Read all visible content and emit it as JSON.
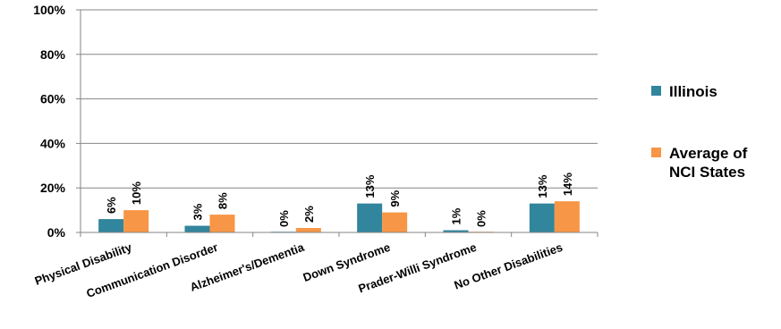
{
  "chart_data": {
    "type": "bar",
    "categories": [
      "Physical Disability",
      "Communication Disorder",
      "Alzheimer's/Dementia",
      "Down Syndrome",
      "Prader-Willi Syndrome",
      "No Other Disabilities"
    ],
    "series": [
      {
        "name": "Illinois",
        "color": "#31859C",
        "values": [
          6,
          3,
          0,
          13,
          1,
          13
        ],
        "labels": [
          "6%",
          "3%",
          "0%",
          "13%",
          "1%",
          "13%"
        ]
      },
      {
        "name": "Average of NCI States",
        "legend_lines": [
          "Average of",
          "NCI States"
        ],
        "color": "#F79646",
        "values": [
          10,
          8,
          2,
          9,
          0,
          14
        ],
        "labels": [
          "10%",
          "8%",
          "2%",
          "9%",
          "0%",
          "14%"
        ]
      }
    ],
    "ylim": [
      0,
      100
    ],
    "yticks": [
      "0%",
      "20%",
      "40%",
      "60%",
      "80%",
      "100%"
    ],
    "grid": true,
    "legend_position": "right",
    "title": "",
    "xlabel": "",
    "ylabel": ""
  }
}
